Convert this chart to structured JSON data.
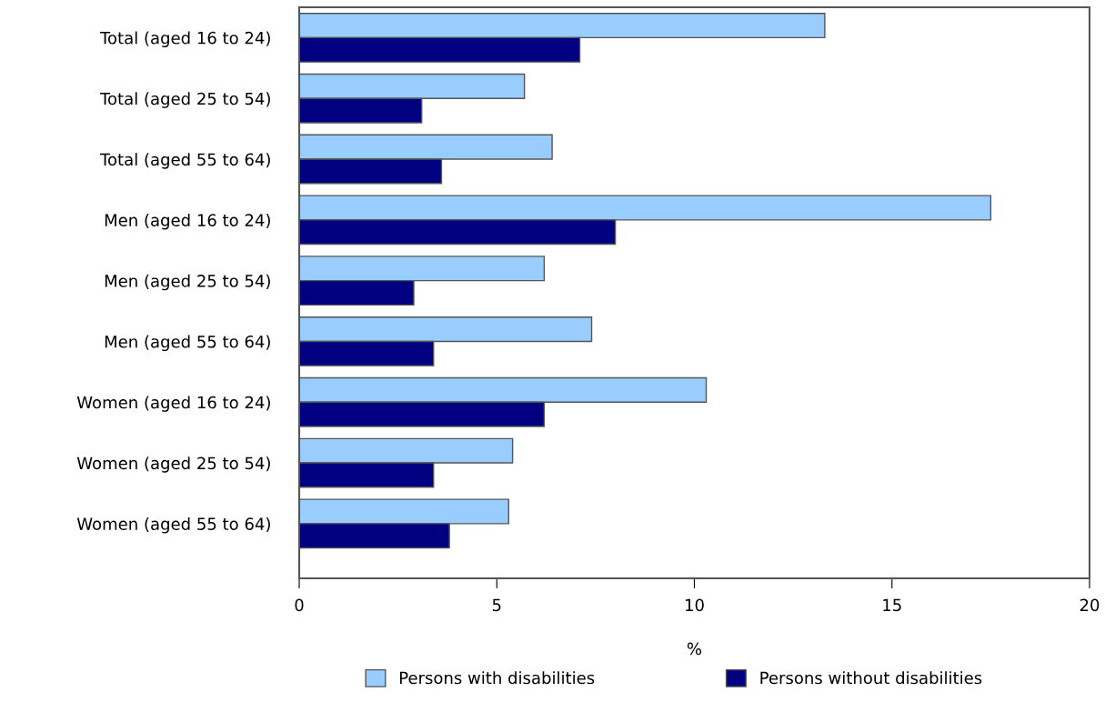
{
  "chart_data": {
    "type": "bar",
    "orientation": "horizontal",
    "xlabel": "%",
    "categories": [
      "Total (aged 16 to 24)",
      "Total (aged 25 to 54)",
      "Total (aged 55 to 64)",
      "Men (aged 16 to 24)",
      "Men (aged 25 to 54)",
      "Men (aged 55 to 64)",
      "Women (aged 16 to 24)",
      "Women (aged 25 to 54)",
      "Women (aged 55 to 64)"
    ],
    "series": [
      {
        "name": "Persons with disabilities",
        "color": "#99ccff",
        "values": [
          13.3,
          5.7,
          6.4,
          17.5,
          6.2,
          7.4,
          10.3,
          5.4,
          5.3
        ]
      },
      {
        "name": "Persons without disabilities",
        "color": "#000080",
        "values": [
          7.1,
          3.1,
          3.6,
          8.0,
          2.9,
          3.4,
          6.2,
          3.4,
          3.8
        ]
      }
    ],
    "xlim": [
      0,
      20
    ],
    "xticks": [
      0,
      5,
      10,
      15,
      20
    ],
    "grid": false,
    "legend": "bottom"
  }
}
